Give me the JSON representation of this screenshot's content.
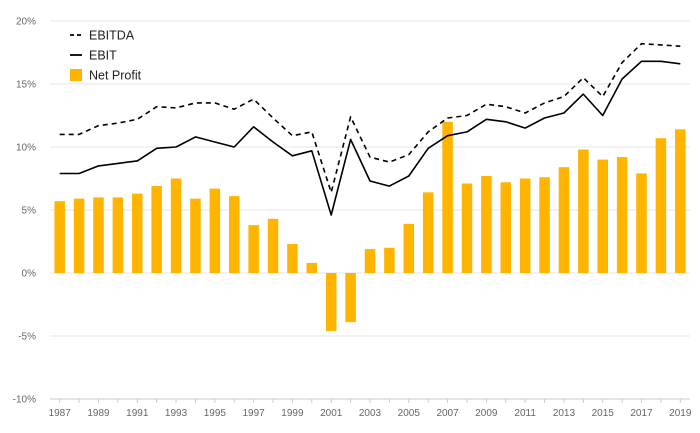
{
  "chart_data": {
    "type": "bar",
    "title": "",
    "xlabel": "",
    "ylabel": "",
    "ylim": [
      -10,
      20
    ],
    "y_ticks": [
      -10,
      -5,
      0,
      5,
      10,
      15,
      20
    ],
    "y_tick_labels": [
      "-10%",
      "-5%",
      "0%",
      "5%",
      "10%",
      "15%",
      "20%"
    ],
    "x_tick_labels": [
      "1987",
      "1989",
      "1991",
      "1993",
      "1995",
      "1997",
      "1999",
      "2001",
      "2003",
      "2005",
      "2007",
      "2009",
      "2011",
      "2013",
      "2015",
      "2017",
      "2019"
    ],
    "categories": [
      1987,
      1988,
      1989,
      1990,
      1991,
      1992,
      1993,
      1994,
      1995,
      1996,
      1997,
      1998,
      1999,
      2000,
      2001,
      2002,
      2003,
      2004,
      2005,
      2006,
      2007,
      2008,
      2009,
      2010,
      2011,
      2012,
      2013,
      2014,
      2015,
      2016,
      2017,
      2018,
      2019
    ],
    "grid": true,
    "legend_position": "top-left",
    "series": [
      {
        "name": "EBITDA",
        "kind": "line",
        "style": "dashed",
        "color": "#000000",
        "values": [
          11.0,
          11.0,
          11.7,
          11.9,
          12.2,
          13.2,
          13.1,
          13.5,
          13.5,
          13.0,
          13.8,
          12.3,
          10.9,
          11.2,
          6.4,
          12.4,
          9.2,
          8.8,
          9.4,
          11.2,
          12.3,
          12.5,
          13.4,
          13.2,
          12.7,
          13.5,
          14.0,
          15.5,
          14.0,
          16.7,
          18.2,
          18.1,
          18.0
        ]
      },
      {
        "name": "EBIT",
        "kind": "line",
        "style": "solid",
        "color": "#000000",
        "values": [
          7.9,
          7.9,
          8.5,
          8.7,
          8.9,
          9.9,
          10.0,
          10.8,
          10.4,
          10.0,
          11.6,
          10.4,
          9.3,
          9.7,
          4.6,
          10.6,
          7.3,
          6.9,
          7.7,
          9.9,
          10.9,
          11.2,
          12.2,
          12.0,
          11.5,
          12.3,
          12.7,
          14.2,
          12.5,
          15.4,
          16.8,
          16.8,
          16.6
        ]
      },
      {
        "name": "Net Profit",
        "kind": "bar",
        "color": "#FFB400",
        "values": [
          5.7,
          5.9,
          6.0,
          6.0,
          6.3,
          6.9,
          7.5,
          5.9,
          6.7,
          6.1,
          3.8,
          4.3,
          2.3,
          0.8,
          -4.6,
          -3.9,
          1.9,
          2.0,
          3.9,
          6.4,
          12.0,
          7.1,
          7.7,
          7.2,
          7.5,
          7.6,
          8.4,
          9.8,
          9.0,
          9.2,
          7.9,
          10.7,
          11.4
        ]
      }
    ]
  }
}
